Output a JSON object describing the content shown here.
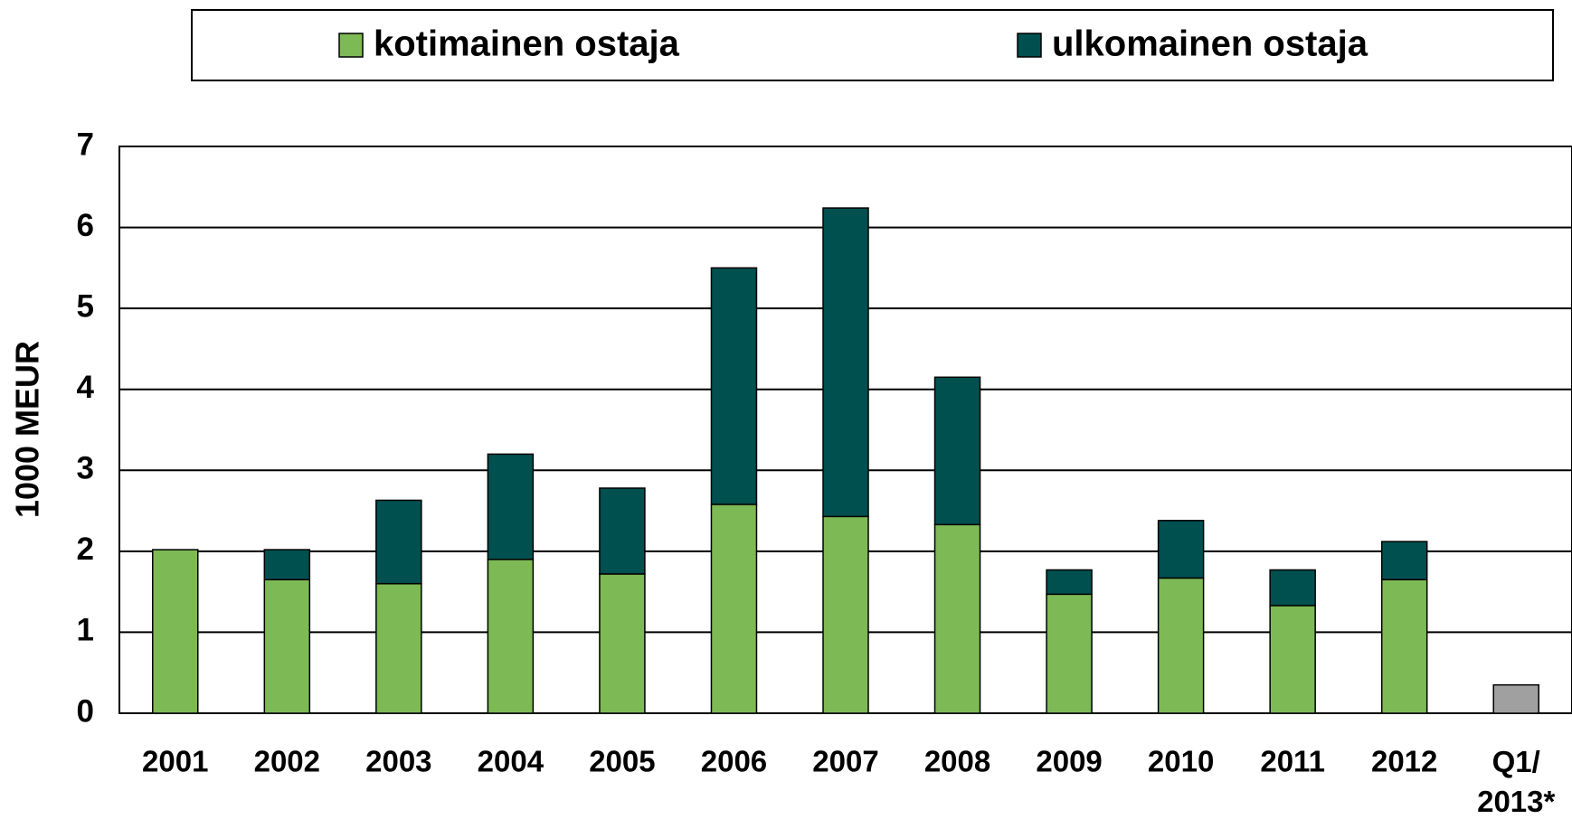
{
  "chart_data": {
    "type": "stacked-bar",
    "ylabel": "1000 MEUR",
    "categories": [
      "2001",
      "2002",
      "2003",
      "2004",
      "2005",
      "2006",
      "2007",
      "2008",
      "2009",
      "2010",
      "2011",
      "2012",
      "Q1/\n2013*"
    ],
    "series": [
      {
        "name": "kotimainen ostaja",
        "color": "#7db955",
        "values": [
          2.02,
          1.65,
          1.6,
          1.9,
          1.72,
          2.58,
          2.43,
          2.33,
          1.47,
          1.67,
          1.33,
          1.65,
          null
        ]
      },
      {
        "name": "ulkomainen ostaja",
        "color": "#005050",
        "values": [
          0,
          0.37,
          1.03,
          1.3,
          1.06,
          2.92,
          3.81,
          1.82,
          0.3,
          0.71,
          0.44,
          0.47,
          null
        ]
      },
      {
        "color": "#a0a0a0",
        "values": [
          null,
          null,
          null,
          null,
          null,
          null,
          null,
          null,
          null,
          null,
          null,
          null,
          0.35
        ]
      }
    ],
    "ylim": [
      0,
      7
    ],
    "yticks": [
      0,
      1,
      2,
      3,
      4,
      5,
      6,
      7
    ],
    "grid": true
  }
}
